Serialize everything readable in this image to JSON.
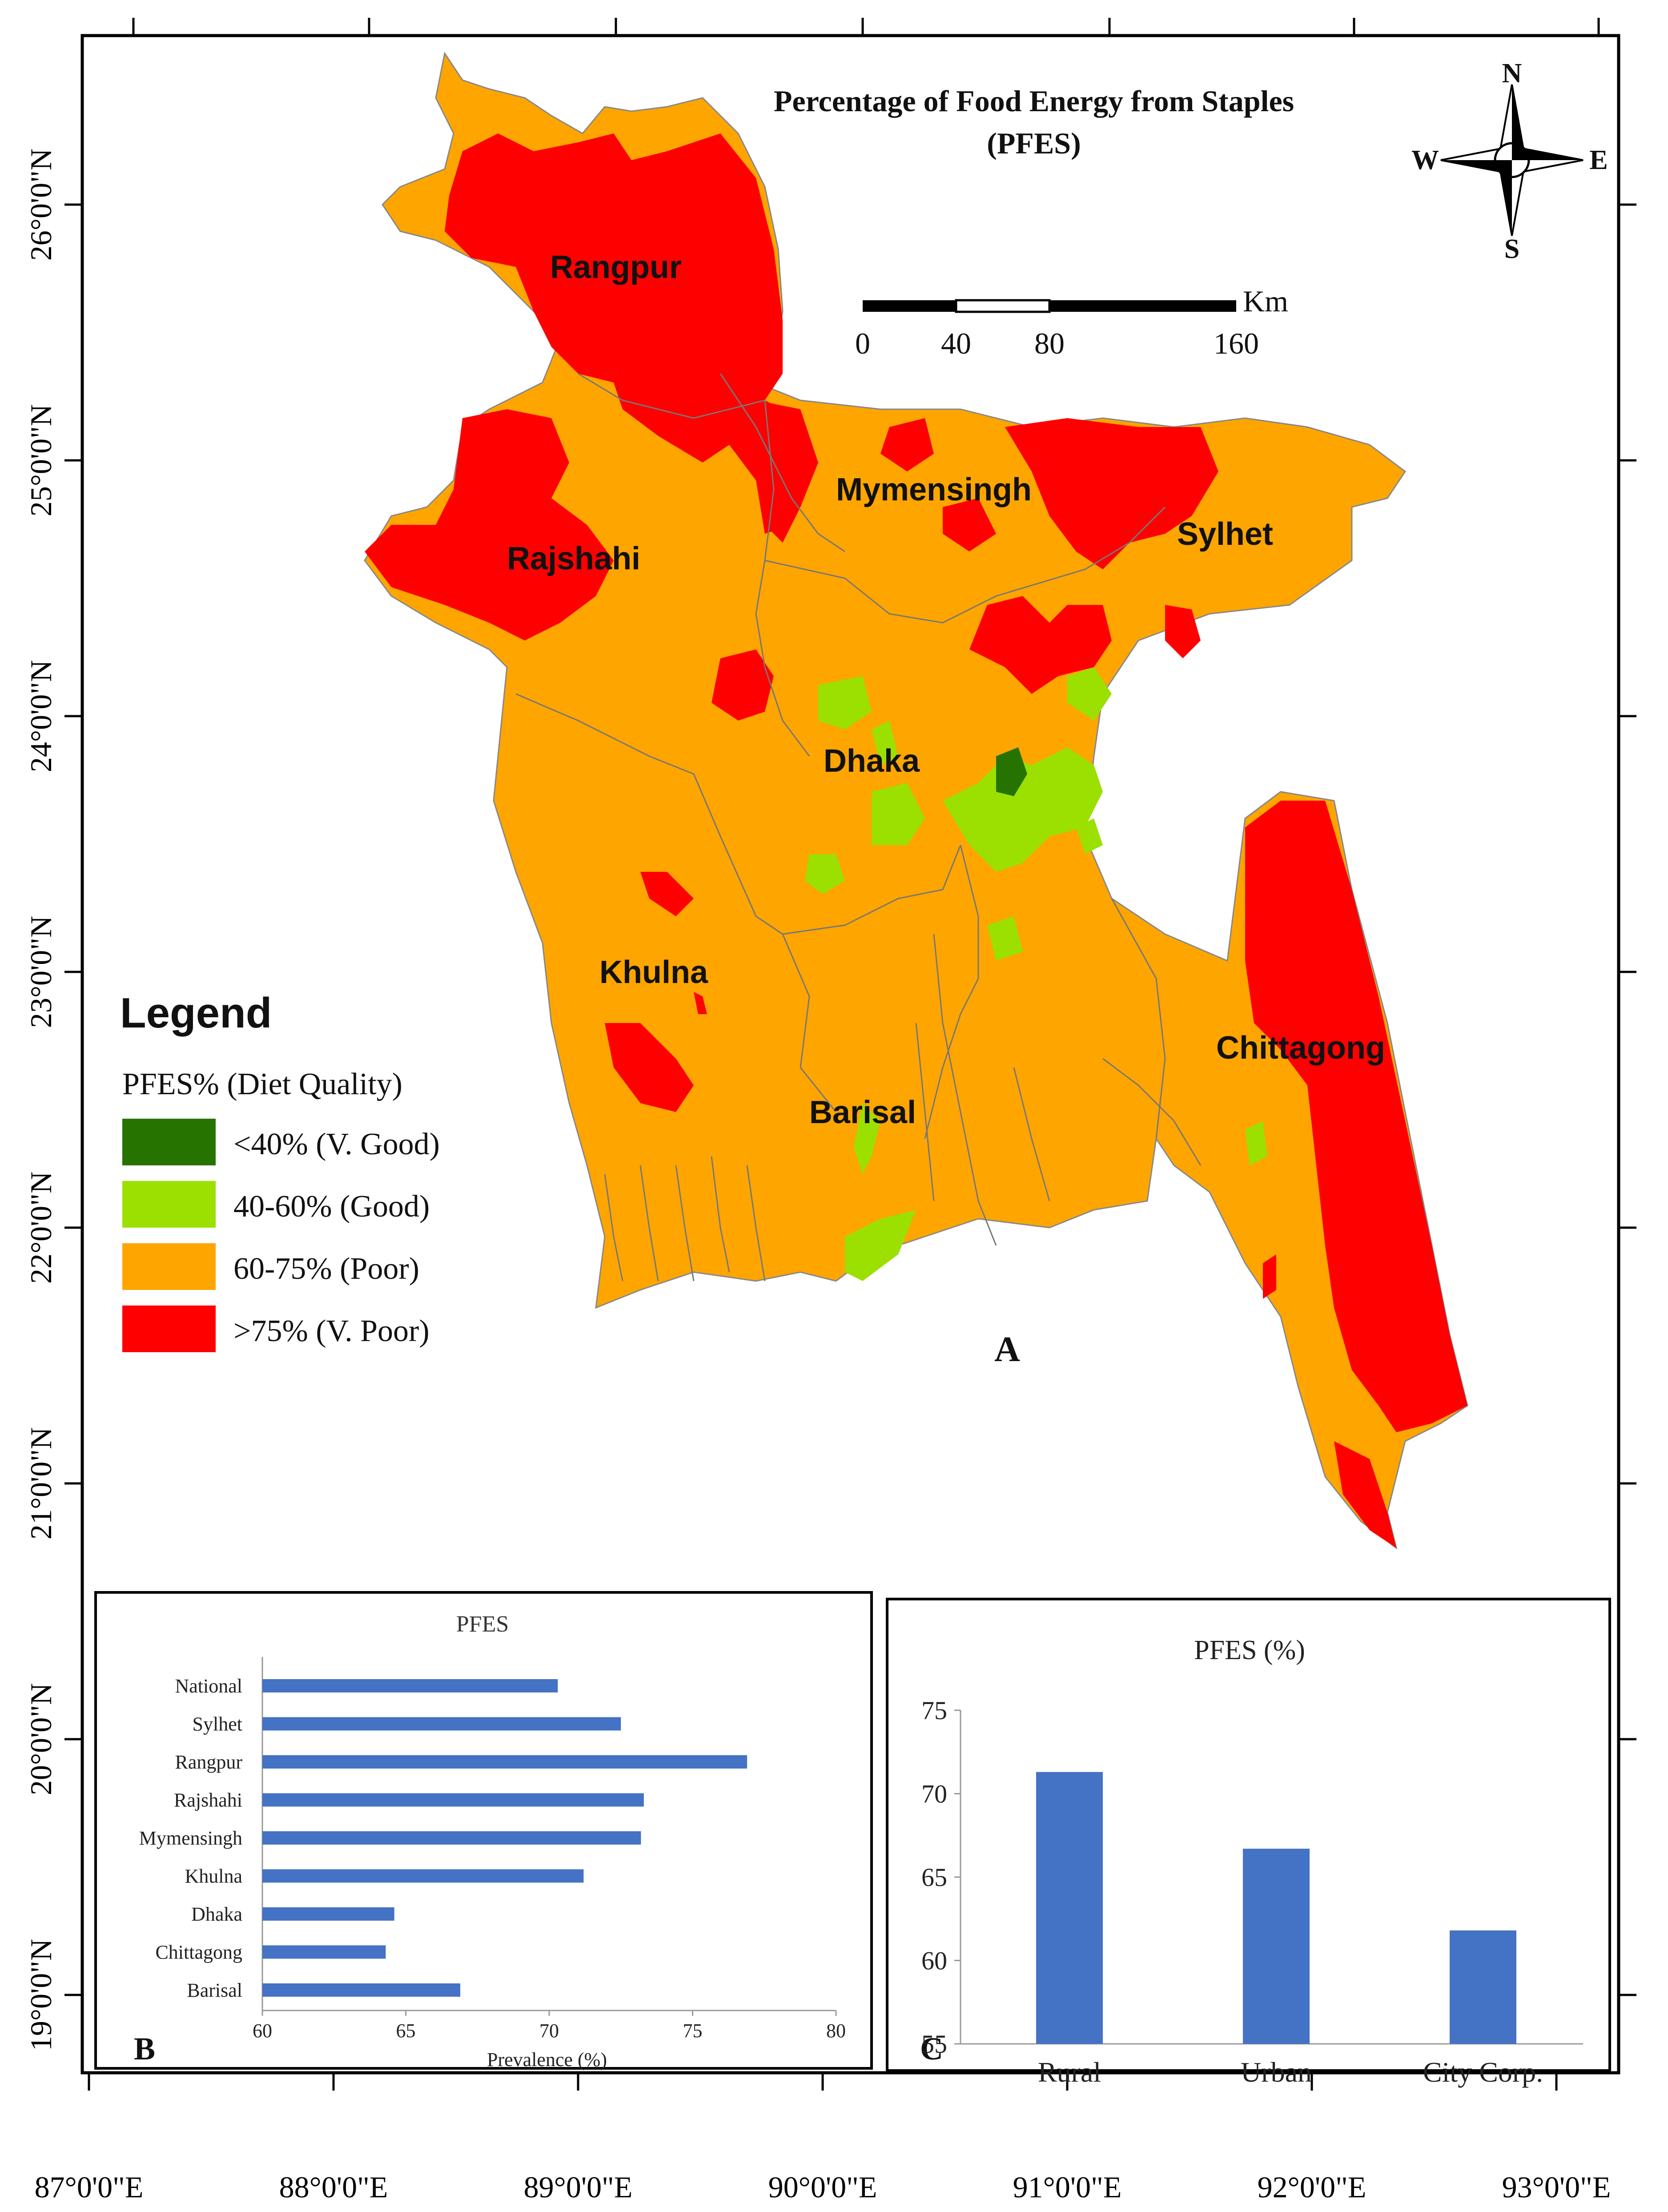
{
  "map": {
    "title_line1": "Percentage of Food Energy from Staples",
    "title_line2": "(PFES)",
    "panel_letter": "A",
    "north": {
      "n": "N",
      "s": "S",
      "e": "E",
      "w": "W"
    },
    "scale": {
      "unit": "Km",
      "ticks": [
        "0",
        "40",
        "80",
        "160"
      ]
    },
    "lat_labels": [
      "26°0'0\"N",
      "25°0'0\"N",
      "24°0'0\"N",
      "23°0'0\"N",
      "22°0'0\"N",
      "21°0'0\"N",
      "20°0'0\"N",
      "19°0'0\"N"
    ],
    "lon_labels": [
      "87°0'0\"E",
      "88°0'0\"E",
      "89°0'0\"E",
      "90°0'0\"E",
      "91°0'0\"E",
      "92°0'0\"E",
      "93°0'0\"E"
    ],
    "divisions": [
      "Rangpur",
      "Mymensingh",
      "Rajshahi",
      "Sylhet",
      "Dhaka",
      "Khulna",
      "Chittagong",
      "Barisal"
    ],
    "legend": {
      "title": "Legend",
      "subtitle": "PFES% (Diet Quality)",
      "items": [
        {
          "label": "<40% (V. Good)",
          "color": "#267300"
        },
        {
          "label": "40-60% (Good)",
          "color": "#9be000"
        },
        {
          "label": "60-75% (Poor)",
          "color": "#ffa500"
        },
        {
          "label": ">75% (V. Poor)",
          "color": "#ff0000"
        }
      ]
    }
  },
  "chart_data": [
    {
      "type": "bar",
      "orientation": "horizontal",
      "panel_letter": "B",
      "title": "PFES",
      "xlabel": "Prevalence (%)",
      "xlim": [
        60,
        80
      ],
      "xticks": [
        "60",
        "65",
        "70",
        "75",
        "80"
      ],
      "categories": [
        "National",
        "Sylhet",
        "Rangpur",
        "Rajshahi",
        "Mymensingh",
        "Khulna",
        "Dhaka",
        "Chittagong",
        "Barisal"
      ],
      "values": [
        70.3,
        72.5,
        76.9,
        73.3,
        73.2,
        71.2,
        64.6,
        64.3,
        66.9
      ],
      "color": "#4472c4"
    },
    {
      "type": "bar",
      "panel_letter": "C",
      "title": "PFES (%)",
      "ylim": [
        55,
        75
      ],
      "yticks": [
        "55",
        "60",
        "65",
        "70",
        "75"
      ],
      "categories": [
        "Rural",
        "Urban",
        "City Corp."
      ],
      "values": [
        71.3,
        66.7,
        61.8
      ],
      "color": "#4472c4"
    }
  ]
}
